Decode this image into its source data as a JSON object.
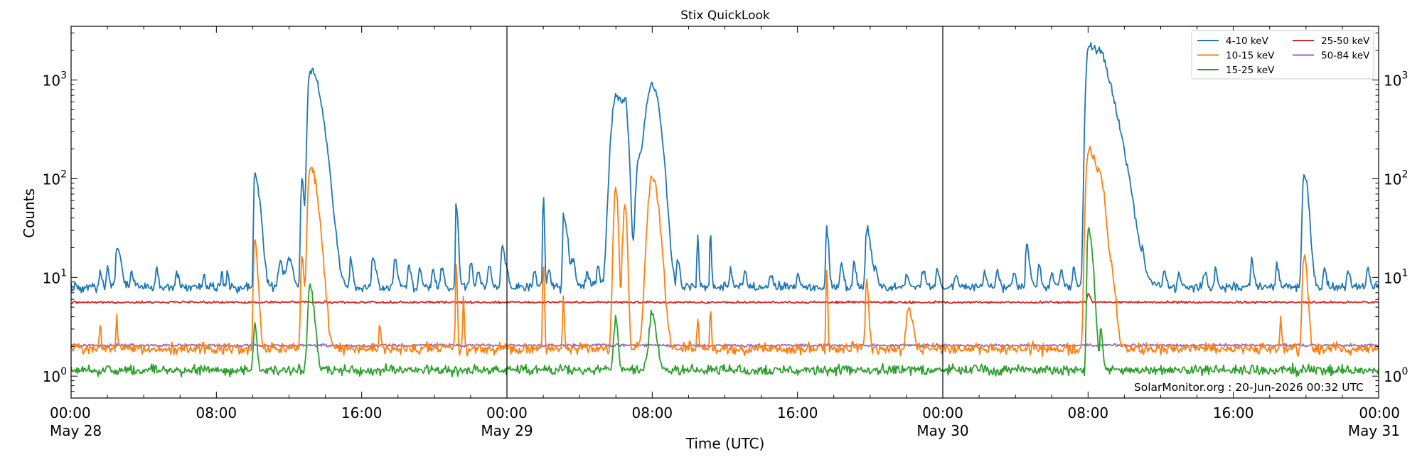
{
  "chart_data": {
    "type": "line",
    "title": "Stix QuickLook",
    "xlabel": "Time (UTC)",
    "ylabel": "Counts",
    "yscale": "log",
    "ylim": [
      0.6,
      3500
    ],
    "xlim_hours": [
      0,
      72
    ],
    "x_unit": "hours since 00:00 May 28 (UTC)",
    "y_ticks": [
      {
        "value": 1,
        "base": "10",
        "exp": "0"
      },
      {
        "value": 10,
        "base": "10",
        "exp": "1"
      },
      {
        "value": 100,
        "base": "10",
        "exp": "2"
      },
      {
        "value": 1000,
        "base": "10",
        "exp": "3"
      }
    ],
    "x_ticks": [
      {
        "hour": 0,
        "time": "00:00",
        "date": "May 28"
      },
      {
        "hour": 8,
        "time": "08:00",
        "date": ""
      },
      {
        "hour": 16,
        "time": "16:00",
        "date": ""
      },
      {
        "hour": 24,
        "time": "00:00",
        "date": "May 29"
      },
      {
        "hour": 32,
        "time": "08:00",
        "date": ""
      },
      {
        "hour": 40,
        "time": "16:00",
        "date": ""
      },
      {
        "hour": 48,
        "time": "00:00",
        "date": "May 30"
      },
      {
        "hour": 56,
        "time": "08:00",
        "date": ""
      },
      {
        "hour": 64,
        "time": "16:00",
        "date": ""
      },
      {
        "hour": 72,
        "time": "00:00",
        "date": "May 31"
      }
    ],
    "day_boundaries_hours": [
      24,
      48
    ],
    "grid": false,
    "legend_position": "top-right",
    "annotation": "SolarMonitor.org : 20-Jun-2026 00:32 UTC",
    "series": [
      {
        "name": "4-10 keV",
        "color": "#1f77b4",
        "baseline": 8,
        "noise": 0.07,
        "peaks": [
          [
            1.6,
            12,
            0.04,
            0.08
          ],
          [
            2.0,
            13,
            0.04,
            0.08
          ],
          [
            2.5,
            20,
            0.05,
            0.2
          ],
          [
            3.3,
            11,
            0.04,
            0.1
          ],
          [
            4.7,
            12,
            0.05,
            0.1
          ],
          [
            5.8,
            11,
            0.04,
            0.1
          ],
          [
            7.3,
            11,
            0.03,
            0.06
          ],
          [
            8.3,
            12,
            0.03,
            0.06
          ],
          [
            8.6,
            12,
            0.03,
            0.06
          ],
          [
            10.1,
            110,
            0.04,
            0.25
          ],
          [
            11.5,
            14,
            0.1,
            0.2
          ],
          [
            12.0,
            15,
            0.1,
            0.2
          ],
          [
            12.7,
            100,
            0.05,
            0.1
          ],
          [
            13.15,
            1250,
            0.1,
            0.5
          ],
          [
            15.4,
            15,
            0.05,
            0.1
          ],
          [
            16.6,
            16,
            0.05,
            0.15
          ],
          [
            17.8,
            15,
            0.05,
            0.15
          ],
          [
            18.6,
            13,
            0.05,
            0.1
          ],
          [
            19.2,
            13,
            0.05,
            0.1
          ],
          [
            19.9,
            12,
            0.05,
            0.1
          ],
          [
            20.4,
            13,
            0.05,
            0.1
          ],
          [
            21.2,
            55,
            0.03,
            0.1
          ],
          [
            22.0,
            14,
            0.05,
            0.1
          ],
          [
            22.4,
            12,
            0.05,
            0.1
          ],
          [
            23.0,
            13,
            0.05,
            0.1
          ],
          [
            23.7,
            20,
            0.04,
            0.2
          ],
          [
            25.5,
            12,
            0.05,
            0.1
          ],
          [
            26.0,
            70,
            0.03,
            0.05
          ],
          [
            26.3,
            12,
            0.05,
            0.1
          ],
          [
            27.1,
            42,
            0.03,
            0.2
          ],
          [
            27.6,
            14,
            0.05,
            0.15
          ],
          [
            28.4,
            12,
            0.05,
            0.1
          ],
          [
            29.0,
            13,
            0.05,
            0.1
          ],
          [
            30.0,
            700,
            0.2,
            0.2
          ],
          [
            30.5,
            600,
            0.2,
            0.15
          ],
          [
            31.2,
            120,
            0.1,
            0.2
          ],
          [
            32.0,
            900,
            0.3,
            0.35
          ],
          [
            33.4,
            15,
            0.05,
            0.1
          ],
          [
            34.5,
            28,
            0.03,
            0.05
          ],
          [
            35.2,
            30,
            0.03,
            0.05
          ],
          [
            36.3,
            12,
            0.05,
            0.1
          ],
          [
            37.1,
            12,
            0.05,
            0.1
          ],
          [
            38.5,
            11,
            0.05,
            0.1
          ],
          [
            40.0,
            11,
            0.05,
            0.1
          ],
          [
            41.6,
            32,
            0.04,
            0.1
          ],
          [
            42.4,
            14,
            0.05,
            0.1
          ],
          [
            43.1,
            14,
            0.05,
            0.1
          ],
          [
            43.8,
            33,
            0.05,
            0.2
          ],
          [
            44.3,
            12,
            0.05,
            0.1
          ],
          [
            46.0,
            11,
            0.05,
            0.1
          ],
          [
            46.9,
            12,
            0.05,
            0.1
          ],
          [
            47.7,
            12,
            0.05,
            0.1
          ],
          [
            48.7,
            11,
            0.05,
            0.1
          ],
          [
            50.3,
            11,
            0.05,
            0.1
          ],
          [
            51.0,
            12,
            0.05,
            0.1
          ],
          [
            51.9,
            12,
            0.05,
            0.1
          ],
          [
            52.6,
            21,
            0.04,
            0.15
          ],
          [
            53.3,
            13,
            0.05,
            0.1
          ],
          [
            54.0,
            11,
            0.05,
            0.1
          ],
          [
            54.5,
            12,
            0.05,
            0.1
          ],
          [
            55.2,
            13,
            0.05,
            0.1
          ],
          [
            56.0,
            2200,
            0.1,
            0.9
          ],
          [
            56.7,
            450,
            0.1,
            0.2
          ],
          [
            57.4,
            12,
            0.05,
            0.1
          ],
          [
            58.0,
            13,
            0.05,
            0.1
          ],
          [
            59.0,
            12,
            0.05,
            0.1
          ],
          [
            60.2,
            12,
            0.05,
            0.1
          ],
          [
            61.0,
            11,
            0.05,
            0.1
          ],
          [
            62.4,
            11,
            0.05,
            0.1
          ],
          [
            63.0,
            12,
            0.05,
            0.1
          ],
          [
            65.0,
            16,
            0.04,
            0.1
          ],
          [
            66.4,
            13,
            0.05,
            0.1
          ],
          [
            67.9,
            110,
            0.08,
            0.2
          ],
          [
            69.0,
            13,
            0.05,
            0.1
          ],
          [
            70.3,
            12,
            0.05,
            0.1
          ],
          [
            71.4,
            13,
            0.05,
            0.1
          ]
        ]
      },
      {
        "name": "10-15 keV",
        "color": "#ff7f0e",
        "baseline": 1.9,
        "noise": 0.09,
        "peaks": [
          [
            1.6,
            3.7,
            0.03,
            0.05
          ],
          [
            2.5,
            3.8,
            0.03,
            0.05
          ],
          [
            10.1,
            22,
            0.05,
            0.15
          ],
          [
            12.7,
            16,
            0.05,
            0.1
          ],
          [
            13.15,
            130,
            0.1,
            0.35
          ],
          [
            17.0,
            3.6,
            0.03,
            0.05
          ],
          [
            21.2,
            14,
            0.03,
            0.05
          ],
          [
            21.6,
            6,
            0.03,
            0.05
          ],
          [
            26.0,
            14,
            0.03,
            0.05
          ],
          [
            27.1,
            7,
            0.03,
            0.05
          ],
          [
            30.0,
            80,
            0.1,
            0.1
          ],
          [
            30.5,
            55,
            0.1,
            0.1
          ],
          [
            32.0,
            100,
            0.2,
            0.3
          ],
          [
            34.5,
            4,
            0.03,
            0.05
          ],
          [
            35.2,
            4.5,
            0.03,
            0.05
          ],
          [
            41.6,
            12,
            0.03,
            0.05
          ],
          [
            43.8,
            9,
            0.05,
            0.1
          ],
          [
            46.1,
            5,
            0.1,
            0.2
          ],
          [
            56.0,
            200,
            0.1,
            0.5
          ],
          [
            56.7,
            40,
            0.1,
            0.2
          ],
          [
            57.3,
            6,
            0.1,
            0.2
          ],
          [
            66.6,
            4.2,
            0.03,
            0.05
          ],
          [
            67.9,
            17,
            0.08,
            0.15
          ]
        ]
      },
      {
        "name": "15-25 keV",
        "color": "#2ca02c",
        "baseline": 1.15,
        "noise": 0.08,
        "peaks": [
          [
            10.1,
            3.5,
            0.05,
            0.1
          ],
          [
            13.15,
            8,
            0.1,
            0.2
          ],
          [
            30.0,
            4,
            0.1,
            0.1
          ],
          [
            32.0,
            4.2,
            0.15,
            0.2
          ],
          [
            56.0,
            34,
            0.05,
            0.2
          ],
          [
            56.7,
            2.8,
            0.05,
            0.1
          ]
        ]
      },
      {
        "name": "25-50 keV",
        "color": "#d62728",
        "baseline": 5.6,
        "noise": 0.018,
        "peaks": [
          [
            56.0,
            7,
            0.05,
            0.1
          ]
        ]
      },
      {
        "name": "50-84 keV",
        "color": "#9467bd",
        "baseline": 2.05,
        "noise": 0.022,
        "peaks": []
      }
    ]
  }
}
